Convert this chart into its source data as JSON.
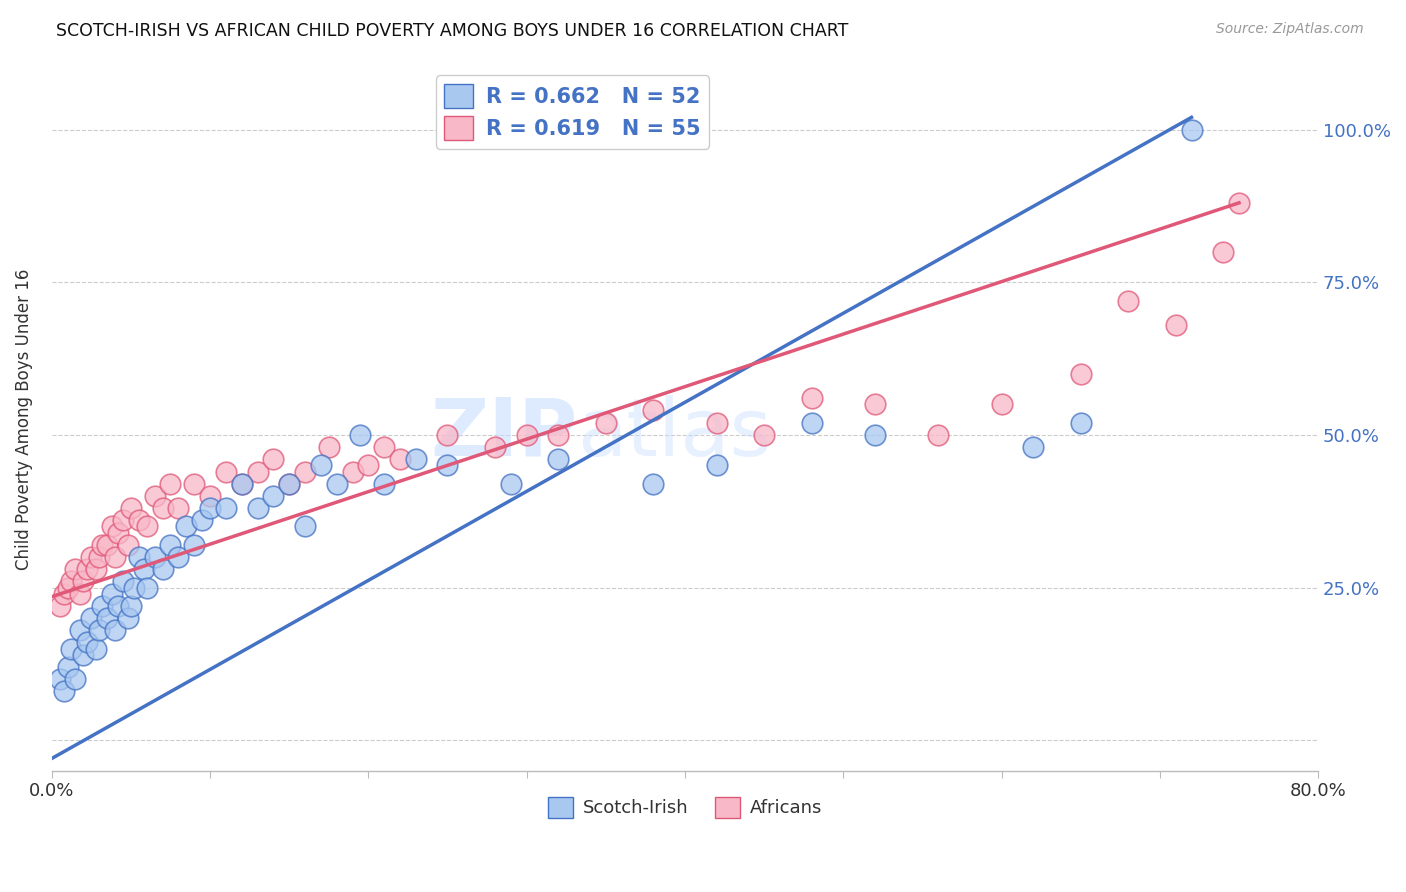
{
  "title": "SCOTCH-IRISH VS AFRICAN CHILD POVERTY AMONG BOYS UNDER 16 CORRELATION CHART",
  "source": "Source: ZipAtlas.com",
  "ylabel": "Child Poverty Among Boys Under 16",
  "xlim": [
    0.0,
    0.8
  ],
  "ylim": [
    -0.05,
    1.1
  ],
  "yticks": [
    0.0,
    0.25,
    0.5,
    0.75,
    1.0
  ],
  "ytick_labels": [
    "",
    "25.0%",
    "50.0%",
    "75.0%",
    "100.0%"
  ],
  "xticks": [
    0.0,
    0.1,
    0.2,
    0.3,
    0.4,
    0.5,
    0.6,
    0.7,
    0.8
  ],
  "color_blue": "#A8C8F0",
  "color_pink": "#F8B8C8",
  "line_blue": "#4472C4",
  "line_pink": "#E05878",
  "watermark_zip": "ZIP",
  "watermark_atlas": "atlas",
  "scotch_irish_x": [
    0.005,
    0.008,
    0.01,
    0.012,
    0.015,
    0.018,
    0.02,
    0.022,
    0.025,
    0.028,
    0.03,
    0.032,
    0.035,
    0.038,
    0.04,
    0.042,
    0.045,
    0.048,
    0.05,
    0.052,
    0.055,
    0.058,
    0.06,
    0.065,
    0.07,
    0.075,
    0.08,
    0.085,
    0.09,
    0.095,
    0.1,
    0.11,
    0.12,
    0.13,
    0.14,
    0.15,
    0.16,
    0.17,
    0.18,
    0.195,
    0.21,
    0.23,
    0.25,
    0.29,
    0.32,
    0.38,
    0.42,
    0.48,
    0.52,
    0.62,
    0.65,
    0.72
  ],
  "scotch_irish_y": [
    0.1,
    0.08,
    0.12,
    0.15,
    0.1,
    0.18,
    0.14,
    0.16,
    0.2,
    0.15,
    0.18,
    0.22,
    0.2,
    0.24,
    0.18,
    0.22,
    0.26,
    0.2,
    0.22,
    0.25,
    0.3,
    0.28,
    0.25,
    0.3,
    0.28,
    0.32,
    0.3,
    0.35,
    0.32,
    0.36,
    0.38,
    0.38,
    0.42,
    0.38,
    0.4,
    0.42,
    0.35,
    0.45,
    0.42,
    0.5,
    0.42,
    0.46,
    0.45,
    0.42,
    0.46,
    0.42,
    0.45,
    0.52,
    0.5,
    0.48,
    0.52,
    1.0
  ],
  "africans_x": [
    0.005,
    0.008,
    0.01,
    0.012,
    0.015,
    0.018,
    0.02,
    0.022,
    0.025,
    0.028,
    0.03,
    0.032,
    0.035,
    0.038,
    0.04,
    0.042,
    0.045,
    0.048,
    0.05,
    0.055,
    0.06,
    0.065,
    0.07,
    0.075,
    0.08,
    0.09,
    0.1,
    0.11,
    0.12,
    0.13,
    0.14,
    0.15,
    0.16,
    0.175,
    0.19,
    0.2,
    0.21,
    0.22,
    0.25,
    0.28,
    0.3,
    0.32,
    0.35,
    0.38,
    0.42,
    0.45,
    0.48,
    0.52,
    0.56,
    0.6,
    0.65,
    0.68,
    0.71,
    0.74,
    0.75
  ],
  "africans_y": [
    0.22,
    0.24,
    0.25,
    0.26,
    0.28,
    0.24,
    0.26,
    0.28,
    0.3,
    0.28,
    0.3,
    0.32,
    0.32,
    0.35,
    0.3,
    0.34,
    0.36,
    0.32,
    0.38,
    0.36,
    0.35,
    0.4,
    0.38,
    0.42,
    0.38,
    0.42,
    0.4,
    0.44,
    0.42,
    0.44,
    0.46,
    0.42,
    0.44,
    0.48,
    0.44,
    0.45,
    0.48,
    0.46,
    0.5,
    0.48,
    0.5,
    0.5,
    0.52,
    0.54,
    0.52,
    0.5,
    0.56,
    0.55,
    0.5,
    0.55,
    0.6,
    0.72,
    0.68,
    0.8,
    0.88
  ],
  "blue_line_x0": 0.0,
  "blue_line_y0": -0.03,
  "blue_line_x1": 0.72,
  "blue_line_y1": 1.02,
  "pink_line_x0": 0.0,
  "pink_line_y0": 0.235,
  "pink_line_x1": 0.75,
  "pink_line_y1": 0.88
}
